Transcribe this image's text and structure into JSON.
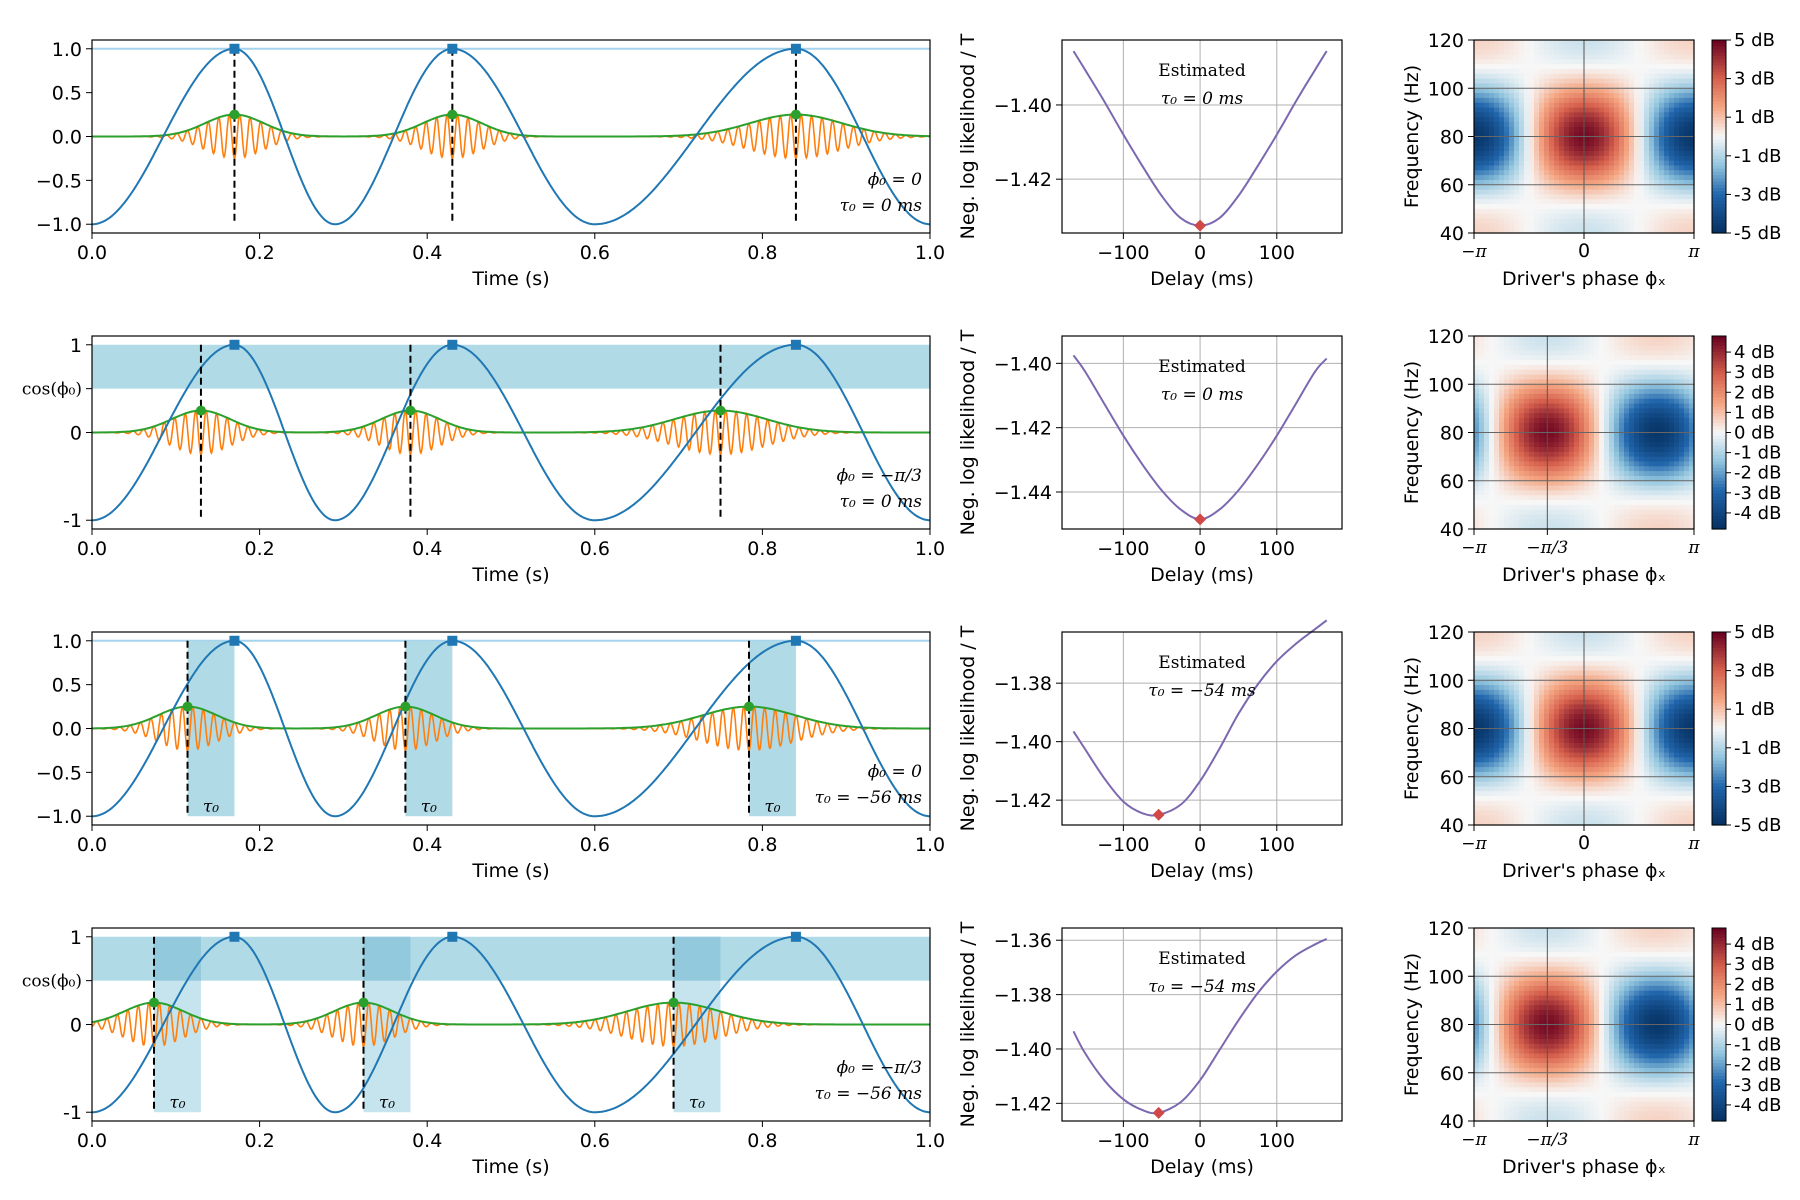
{
  "chart_data": [
    {
      "type": "line",
      "panel": "signals",
      "row": 1,
      "xlabel": "Time (s)",
      "xticks": [
        "0.0",
        "0.2",
        "0.4",
        "0.6",
        "0.8",
        "1.0"
      ],
      "xlim": [
        0,
        1
      ],
      "ylim": [
        -1.1,
        1.1
      ],
      "yticks": [
        {
          "v": 1,
          "t": "1.0"
        },
        {
          "v": 0.5,
          "t": "0.5"
        },
        {
          "v": 0,
          "t": "0.0"
        },
        {
          "v": -0.5,
          "t": "−0.5"
        },
        {
          "v": -1,
          "t": "−1.0"
        }
      ],
      "ylabel": "",
      "phi_label": "ϕ₀ = 0",
      "tau_label": "τ₀ = 0 ms",
      "phi0": 0,
      "tau0_s": 0,
      "band": false,
      "tau_marker": "",
      "peaks_s": [
        0.17,
        0.43,
        0.84
      ],
      "cycle_bounds_s": [
        0,
        0.29,
        0.6,
        1.0
      ]
    },
    {
      "type": "line",
      "panel": "signals",
      "row": 2,
      "xlabel": "Time (s)",
      "xticks": [
        "0.0",
        "0.2",
        "0.4",
        "0.6",
        "0.8",
        "1.0"
      ],
      "xlim": [
        0,
        1
      ],
      "ylim": [
        -1.1,
        1.1
      ],
      "yticks": [
        {
          "v": 1,
          "t": "1"
        },
        {
          "v": 0,
          "t": "0"
        },
        {
          "v": -1,
          "t": "-1"
        }
      ],
      "ylabel": "cos(ϕ₀)",
      "ylabel_y": 0.5,
      "phi_label": "ϕ₀ = −π/3",
      "tau_label": "τ₀ = 0 ms",
      "phi0": -1.0472,
      "tau0_s": 0,
      "band": true,
      "tau_marker": "",
      "peaks_s": [
        0.17,
        0.43,
        0.84
      ],
      "cycle_bounds_s": [
        0,
        0.29,
        0.6,
        1.0
      ]
    },
    {
      "type": "line",
      "panel": "signals",
      "row": 3,
      "xlabel": "Time (s)",
      "xticks": [
        "0.0",
        "0.2",
        "0.4",
        "0.6",
        "0.8",
        "1.0"
      ],
      "xlim": [
        0,
        1
      ],
      "ylim": [
        -1.1,
        1.1
      ],
      "yticks": [
        {
          "v": 1,
          "t": "1.0"
        },
        {
          "v": 0.5,
          "t": "0.5"
        },
        {
          "v": 0,
          "t": "0.0"
        },
        {
          "v": -0.5,
          "t": "−0.5"
        },
        {
          "v": -1,
          "t": "−1.0"
        }
      ],
      "ylabel": "",
      "phi_label": "ϕ₀ = 0",
      "tau_label": "τ₀ = −56 ms",
      "phi0": 0,
      "tau0_s": -0.056,
      "band": false,
      "tau_marker": "τ₀",
      "peaks_s": [
        0.17,
        0.43,
        0.84
      ],
      "cycle_bounds_s": [
        0,
        0.29,
        0.6,
        1.0
      ]
    },
    {
      "type": "line",
      "panel": "signals",
      "row": 4,
      "xlabel": "Time (s)",
      "xticks": [
        "0.0",
        "0.2",
        "0.4",
        "0.6",
        "0.8",
        "1.0"
      ],
      "xlim": [
        0,
        1
      ],
      "ylim": [
        -1.1,
        1.1
      ],
      "yticks": [
        {
          "v": 1,
          "t": "1"
        },
        {
          "v": 0,
          "t": "0"
        },
        {
          "v": -1,
          "t": "-1"
        }
      ],
      "ylabel": "cos(ϕ₀)",
      "ylabel_y": 0.5,
      "phi_label": "ϕ₀ = −π/3",
      "tau_label": "τ₀ = −56 ms",
      "phi0": -1.0472,
      "tau0_s": -0.056,
      "band": true,
      "tau_marker": "τ₀",
      "peaks_s": [
        0.17,
        0.43,
        0.84
      ],
      "cycle_bounds_s": [
        0,
        0.29,
        0.6,
        1.0
      ]
    },
    {
      "type": "line",
      "panel": "likelihood",
      "row": 1,
      "xlabel": "Delay (ms)",
      "ylabel": "Neg. log likelihood / T",
      "xlim": [
        -180,
        185
      ],
      "xticks": [
        -100,
        0,
        100
      ],
      "ylim": [
        -1.4345,
        -1.3825
      ],
      "yticks": [
        {
          "v": -1.4,
          "t": "−1.40"
        },
        {
          "v": -1.42,
          "t": "−1.42"
        }
      ],
      "annotation": [
        "Estimated",
        "τ₀ = 0 ms"
      ],
      "min_delay_ms": 0,
      "min_value": -1.4325,
      "points": [
        [
          -165,
          -1.3855
        ],
        [
          -150,
          -1.3905
        ],
        [
          -125,
          -1.399
        ],
        [
          -100,
          -1.408
        ],
        [
          -75,
          -1.4165
        ],
        [
          -50,
          -1.4245
        ],
        [
          -25,
          -1.4305
        ],
        [
          0,
          -1.4325
        ],
        [
          25,
          -1.4305
        ],
        [
          50,
          -1.4245
        ],
        [
          75,
          -1.4165
        ],
        [
          100,
          -1.408
        ],
        [
          125,
          -1.399
        ],
        [
          150,
          -1.3905
        ],
        [
          165,
          -1.3855
        ]
      ]
    },
    {
      "type": "line",
      "panel": "likelihood",
      "row": 2,
      "xlabel": "Delay (ms)",
      "ylabel": "Neg. log likelihood / T",
      "xlim": [
        -180,
        185
      ],
      "xticks": [
        -100,
        0,
        100
      ],
      "ylim": [
        -1.4515,
        -1.3915
      ],
      "yticks": [
        {
          "v": -1.4,
          "t": "−1.40"
        },
        {
          "v": -1.42,
          "t": "−1.42"
        },
        {
          "v": -1.44,
          "t": "−1.44"
        }
      ],
      "annotation": [
        "Estimated",
        "τ₀ = 0 ms"
      ],
      "min_delay_ms": 0,
      "min_value": -1.4485,
      "points": [
        [
          -165,
          -1.3975
        ],
        [
          -150,
          -1.4025
        ],
        [
          -125,
          -1.4125
        ],
        [
          -100,
          -1.4225
        ],
        [
          -75,
          -1.4315
        ],
        [
          -50,
          -1.4395
        ],
        [
          -25,
          -1.4455
        ],
        [
          0,
          -1.4485
        ],
        [
          25,
          -1.4455
        ],
        [
          50,
          -1.4395
        ],
        [
          75,
          -1.4315
        ],
        [
          100,
          -1.4225
        ],
        [
          125,
          -1.4125
        ],
        [
          150,
          -1.4025
        ],
        [
          165,
          -1.3985
        ]
      ]
    },
    {
      "type": "line",
      "panel": "likelihood",
      "row": 3,
      "xlabel": "Delay (ms)",
      "ylabel": "Neg. log likelihood / T",
      "xlim": [
        -180,
        185
      ],
      "xticks": [
        -100,
        0,
        100
      ],
      "ylim": [
        -1.4285,
        -1.3625
      ],
      "yticks": [
        {
          "v": -1.38,
          "t": "−1.38"
        },
        {
          "v": -1.4,
          "t": "−1.40"
        },
        {
          "v": -1.42,
          "t": "−1.42"
        }
      ],
      "annotation": [
        "Estimated",
        "τ₀ = −54 ms"
      ],
      "min_delay_ms": -54,
      "min_value": -1.425,
      "points": [
        [
          -165,
          -1.3965
        ],
        [
          -150,
          -1.4025
        ],
        [
          -125,
          -1.4125
        ],
        [
          -100,
          -1.4205
        ],
        [
          -75,
          -1.4245
        ],
        [
          -54,
          -1.425
        ],
        [
          -25,
          -1.4215
        ],
        [
          0,
          -1.4135
        ],
        [
          25,
          -1.4025
        ],
        [
          50,
          -1.3905
        ],
        [
          75,
          -1.3805
        ],
        [
          100,
          -1.3725
        ],
        [
          125,
          -1.3665
        ],
        [
          150,
          -1.3615
        ],
        [
          165,
          -1.3585
        ]
      ]
    },
    {
      "type": "line",
      "panel": "likelihood",
      "row": 4,
      "xlabel": "Delay (ms)",
      "ylabel": "Neg. log likelihood / T",
      "xlim": [
        -180,
        185
      ],
      "xticks": [
        -100,
        0,
        100
      ],
      "ylim": [
        -1.4265,
        -1.3555
      ],
      "yticks": [
        {
          "v": -1.36,
          "t": "−1.36"
        },
        {
          "v": -1.38,
          "t": "−1.38"
        },
        {
          "v": -1.4,
          "t": "−1.40"
        },
        {
          "v": -1.42,
          "t": "−1.42"
        }
      ],
      "annotation": [
        "Estimated",
        "τ₀ = −54 ms"
      ],
      "min_delay_ms": -54,
      "min_value": -1.4235,
      "points": [
        [
          -165,
          -1.3935
        ],
        [
          -150,
          -1.4015
        ],
        [
          -125,
          -1.4115
        ],
        [
          -100,
          -1.4185
        ],
        [
          -75,
          -1.4225
        ],
        [
          -54,
          -1.4235
        ],
        [
          -25,
          -1.4195
        ],
        [
          0,
          -1.4115
        ],
        [
          25,
          -1.4005
        ],
        [
          50,
          -1.3895
        ],
        [
          75,
          -1.3795
        ],
        [
          100,
          -1.3715
        ],
        [
          125,
          -1.3655
        ],
        [
          150,
          -1.3615
        ],
        [
          165,
          -1.3595
        ]
      ]
    },
    {
      "type": "heatmap",
      "panel": "comodulogram",
      "row": 1,
      "xlabel": "Driver's phase ϕₓ",
      "ylabel": "Frequency (Hz)",
      "ylim": [
        40,
        120
      ],
      "yticks": [
        40,
        60,
        80,
        100,
        120
      ],
      "xticks": [
        {
          "v": -3.1416,
          "t": "−π"
        },
        {
          "v": 0,
          "t": "0"
        },
        {
          "v": 3.1416,
          "t": "π"
        }
      ],
      "vline": 0,
      "hline": 80,
      "peak_phase": 0,
      "peak_freq_hz": 80,
      "max_db": 5,
      "colorbar_ticks": [
        {
          "v": 5,
          "t": "5 dB"
        },
        {
          "v": 3,
          "t": "3 dB"
        },
        {
          "v": 1,
          "t": "1 dB"
        },
        {
          "v": -1,
          "t": "-1 dB"
        },
        {
          "v": -3,
          "t": "-3 dB"
        },
        {
          "v": -5,
          "t": "-5 dB"
        }
      ]
    },
    {
      "type": "heatmap",
      "panel": "comodulogram",
      "row": 2,
      "xlabel": "Driver's phase ϕₓ",
      "ylabel": "Frequency (Hz)",
      "ylim": [
        40,
        120
      ],
      "yticks": [
        40,
        60,
        80,
        100,
        120
      ],
      "xticks": [
        {
          "v": -3.1416,
          "t": "−π"
        },
        {
          "v": -1.0472,
          "t": "−π/3"
        },
        {
          "v": 3.1416,
          "t": "π"
        }
      ],
      "vline": -1.0472,
      "hline": 80,
      "peak_phase": -1.0472,
      "peak_freq_hz": 80,
      "max_db": 4.8,
      "colorbar_ticks": [
        {
          "v": 4,
          "t": "4 dB"
        },
        {
          "v": 3,
          "t": "3 dB"
        },
        {
          "v": 2,
          "t": "2 dB"
        },
        {
          "v": 1,
          "t": "1 dB"
        },
        {
          "v": 0,
          "t": "0 dB"
        },
        {
          "v": -1,
          "t": "-1 dB"
        },
        {
          "v": -2,
          "t": "-2 dB"
        },
        {
          "v": -3,
          "t": "-3 dB"
        },
        {
          "v": -4,
          "t": "-4 dB"
        }
      ]
    },
    {
      "type": "heatmap",
      "panel": "comodulogram",
      "row": 3,
      "xlabel": "Driver's phase ϕₓ",
      "ylabel": "Frequency (Hz)",
      "ylim": [
        40,
        120
      ],
      "yticks": [
        40,
        60,
        80,
        100,
        120
      ],
      "xticks": [
        {
          "v": -3.1416,
          "t": "−π"
        },
        {
          "v": 0,
          "t": "0"
        },
        {
          "v": 3.1416,
          "t": "π"
        }
      ],
      "vline": 0,
      "hline": 80,
      "peak_phase": 0,
      "peak_freq_hz": 80,
      "max_db": 5,
      "colorbar_ticks": [
        {
          "v": 5,
          "t": "5 dB"
        },
        {
          "v": 3,
          "t": "3 dB"
        },
        {
          "v": 1,
          "t": "1 dB"
        },
        {
          "v": -1,
          "t": "-1 dB"
        },
        {
          "v": -3,
          "t": "-3 dB"
        },
        {
          "v": -5,
          "t": "-5 dB"
        }
      ]
    },
    {
      "type": "heatmap",
      "panel": "comodulogram",
      "row": 4,
      "xlabel": "Driver's phase ϕₓ",
      "ylabel": "Frequency (Hz)",
      "ylim": [
        40,
        120
      ],
      "yticks": [
        40,
        60,
        80,
        100,
        120
      ],
      "xticks": [
        {
          "v": -3.1416,
          "t": "−π"
        },
        {
          "v": -1.0472,
          "t": "−π/3"
        },
        {
          "v": 3.1416,
          "t": "π"
        }
      ],
      "vline": -1.0472,
      "hline": 80,
      "peak_phase": -1.0472,
      "peak_freq_hz": 80,
      "max_db": 4.8,
      "colorbar_ticks": [
        {
          "v": 4,
          "t": "4 dB"
        },
        {
          "v": 3,
          "t": "3 dB"
        },
        {
          "v": 2,
          "t": "2 dB"
        },
        {
          "v": 1,
          "t": "1 dB"
        },
        {
          "v": 0,
          "t": "0 dB"
        },
        {
          "v": -1,
          "t": "-1 dB"
        },
        {
          "v": -2,
          "t": "-2 dB"
        },
        {
          "v": -3,
          "t": "-3 dB"
        },
        {
          "v": -4,
          "t": "-4 dB"
        }
      ]
    }
  ],
  "colors": {
    "driver": "#1f77b4",
    "carrier": "#ff7f0e",
    "envelope": "#2ca02c",
    "likelihood": "#7b68b0",
    "minimum": "#d04848",
    "band": "#add8e6",
    "band_dark": "#8cc4d9",
    "threshold": "#a6d4ef",
    "grid": "#b0b0b0"
  }
}
